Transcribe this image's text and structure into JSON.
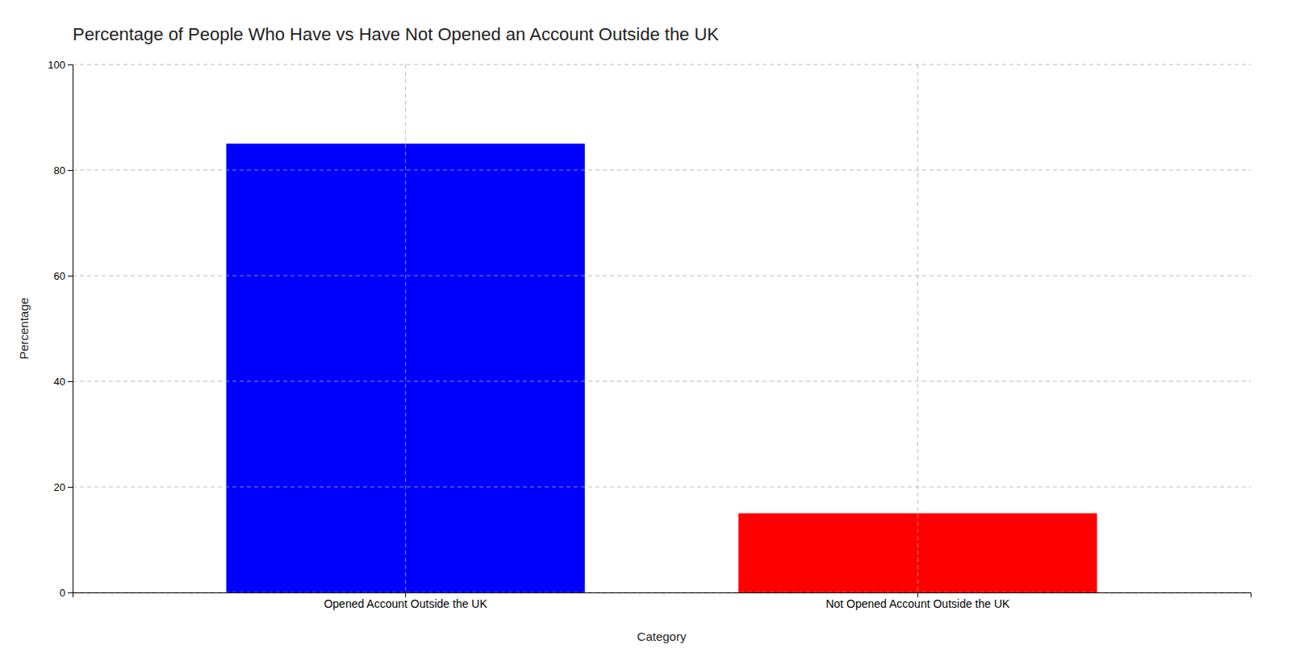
{
  "chart_data": {
    "type": "bar",
    "title": "Percentage of People Who Have vs Have Not Opened an Account Outside the UK",
    "xlabel": "Category",
    "ylabel": "Percentage",
    "categories": [
      "Opened Account Outside the UK",
      "Not Opened Account Outside the UK"
    ],
    "values": [
      85,
      15
    ],
    "colors": [
      "#0000ff",
      "#ff0000"
    ],
    "ylim": [
      0,
      100
    ],
    "yticks": [
      0,
      20,
      40,
      60,
      80,
      100
    ],
    "grid": true
  }
}
